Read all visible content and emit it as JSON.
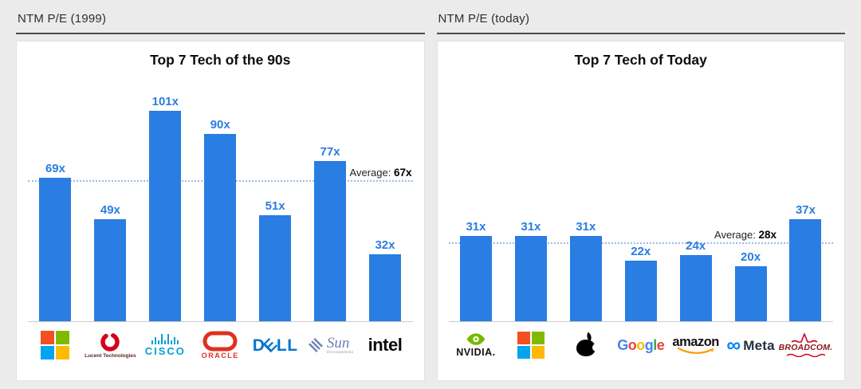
{
  "panels": [
    {
      "header": "NTM P/E (1999)",
      "title": "Top 7 Tech of the 90s",
      "average": 67,
      "average_label": "Average:",
      "average_value": "67x",
      "bars": [
        {
          "company": "Microsoft",
          "label": "69x",
          "value": 69
        },
        {
          "company": "Lucent Technologies",
          "label": "49x",
          "value": 49
        },
        {
          "company": "Cisco",
          "label": "101x",
          "value": 101
        },
        {
          "company": "Oracle",
          "label": "90x",
          "value": 90
        },
        {
          "company": "Dell",
          "label": "51x",
          "value": 51
        },
        {
          "company": "Sun Microsystems",
          "label": "77x",
          "value": 77
        },
        {
          "company": "Intel",
          "label": "32x",
          "value": 32
        }
      ]
    },
    {
      "header": "NTM P/E (today)",
      "title": "Top 7 Tech of Today",
      "average": 28,
      "average_label": "Average:",
      "average_value": "28x",
      "bars": [
        {
          "company": "NVIDIA",
          "label": "31x",
          "value": 31
        },
        {
          "company": "Microsoft",
          "label": "31x",
          "value": 31
        },
        {
          "company": "Apple",
          "label": "31x",
          "value": 31
        },
        {
          "company": "Google",
          "label": "22x",
          "value": 22
        },
        {
          "company": "Amazon",
          "label": "24x",
          "value": 24
        },
        {
          "company": "Meta",
          "label": "20x",
          "value": 20
        },
        {
          "company": "Broadcom",
          "label": "37x",
          "value": 37
        }
      ]
    }
  ],
  "logos": {
    "microsoft": {
      "colors": [
        "#f25022",
        "#7fba00",
        "#00a4ef",
        "#ffb900"
      ]
    },
    "lucent": {
      "text": "Lucent Technologies",
      "ring_color": "#d6001c"
    },
    "cisco": {
      "text": "CISCO",
      "color": "#049fd9"
    },
    "oracle": {
      "text": "ORACLE",
      "color": "#e0301e"
    },
    "dell": {
      "letters": [
        "D",
        "E",
        "L",
        "L"
      ],
      "color": "#0076ce"
    },
    "sun": {
      "text": "Sun",
      "subtext": "microsystems",
      "color": "#6b82b4"
    },
    "intel": {
      "text": "intel",
      "color": "#0a0a0a"
    },
    "nvidia": {
      "text": "NVIDIA.",
      "icon_color": "#76b900"
    },
    "apple": {
      "color": "#000000"
    },
    "google": {
      "letters": [
        {
          "ch": "G",
          "color": "#4285F4"
        },
        {
          "ch": "o",
          "color": "#EA4335"
        },
        {
          "ch": "o",
          "color": "#FBBC05"
        },
        {
          "ch": "g",
          "color": "#4285F4"
        },
        {
          "ch": "l",
          "color": "#34A853"
        },
        {
          "ch": "e",
          "color": "#EA4335"
        }
      ]
    },
    "amazon": {
      "text": "amazon",
      "arrow_color": "#ff9900"
    },
    "meta": {
      "symbol": "∞",
      "text": "Meta",
      "symbol_color": "#0082fb"
    },
    "broadcom": {
      "text": "BROADCOM.",
      "color": "#8c1515",
      "wave_color": "#d0021b"
    }
  },
  "colors": {
    "bar": "#2a7de2",
    "value_label": "#2a7de2",
    "average_line": "#9dbbea",
    "background": "#ebebeb"
  },
  "chart_data": [
    {
      "type": "bar",
      "title": "Top 7 Tech of the 90s",
      "categories": [
        "Microsoft",
        "Lucent Technologies",
        "Cisco",
        "Oracle",
        "Dell",
        "Sun Microsystems",
        "Intel"
      ],
      "values": [
        69,
        49,
        101,
        90,
        51,
        77,
        32
      ],
      "value_suffix": "x",
      "average": 67,
      "average_annotation": "Average: 67x",
      "xlabel": "",
      "ylabel": "NTM P/E (1999)",
      "ylim": [
        0,
        110
      ],
      "grid": false,
      "bar_color": "#2a7de2"
    },
    {
      "type": "bar",
      "title": "Top 7 Tech of Today",
      "categories": [
        "NVIDIA",
        "Microsoft",
        "Apple",
        "Google",
        "Amazon",
        "Meta",
        "Broadcom"
      ],
      "values": [
        31,
        31,
        31,
        22,
        24,
        20,
        37
      ],
      "value_suffix": "x",
      "average": 28,
      "average_annotation": "Average: 28x",
      "xlabel": "",
      "ylabel": "NTM P/E (today)",
      "ylim": [
        0,
        45
      ],
      "grid": false,
      "bar_color": "#2a7de2"
    }
  ]
}
